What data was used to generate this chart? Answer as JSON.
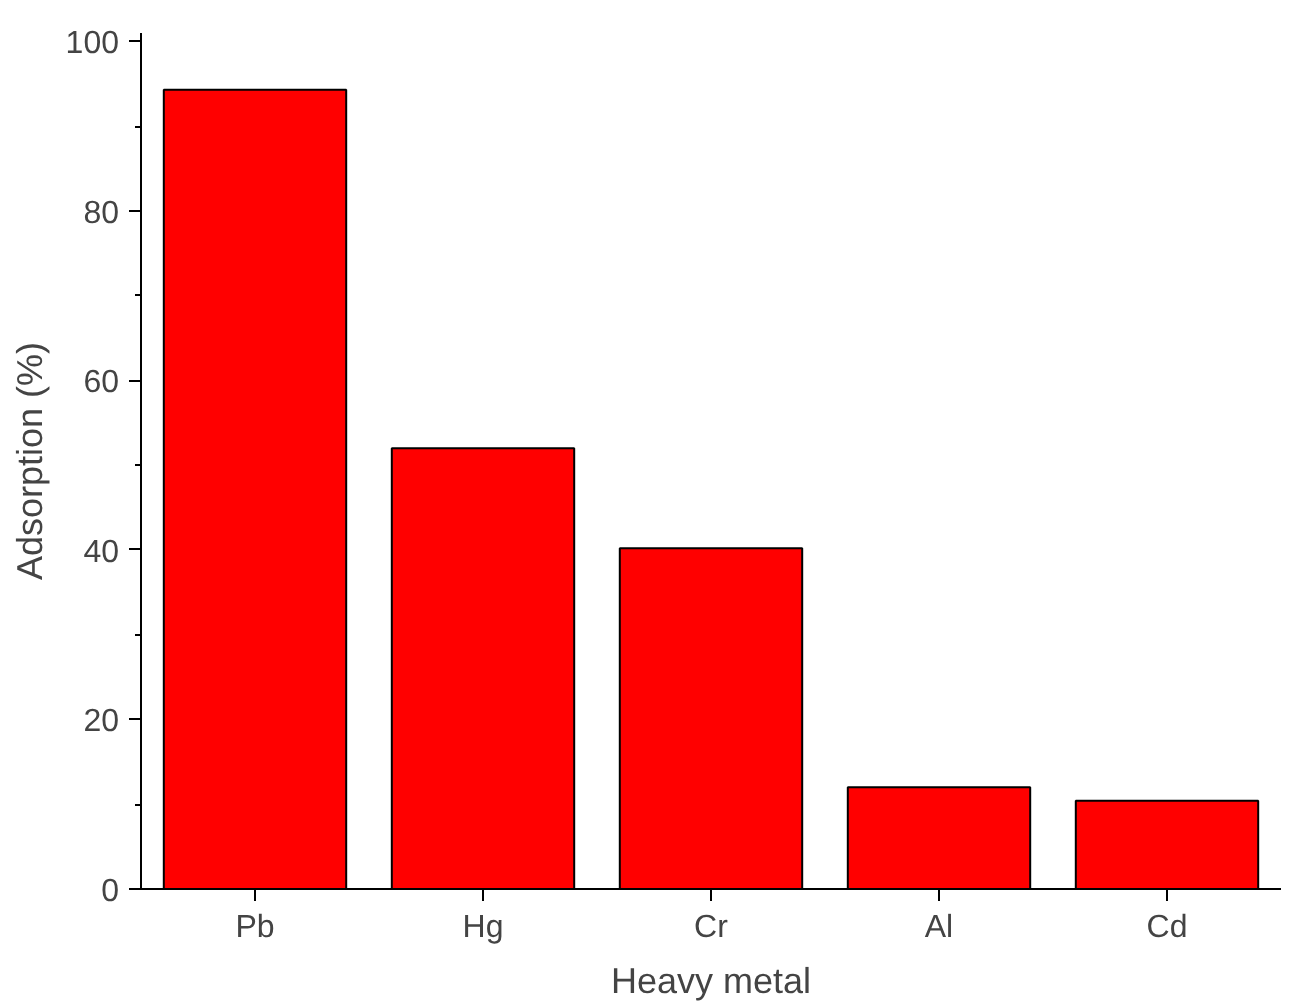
{
  "chart_data": {
    "type": "bar",
    "xlabel": "Heavy metal",
    "ylabel": "Adsorption (%)",
    "categories": [
      "Pb",
      "Hg",
      "Cr",
      "Al",
      "Cd"
    ],
    "values": [
      94.3,
      52,
      40.2,
      12,
      10.4
    ],
    "color": "#ff0000",
    "ylim": [
      0,
      101
    ],
    "yticks": [
      0,
      20,
      40,
      60,
      80,
      100
    ],
    "grid": false
  }
}
